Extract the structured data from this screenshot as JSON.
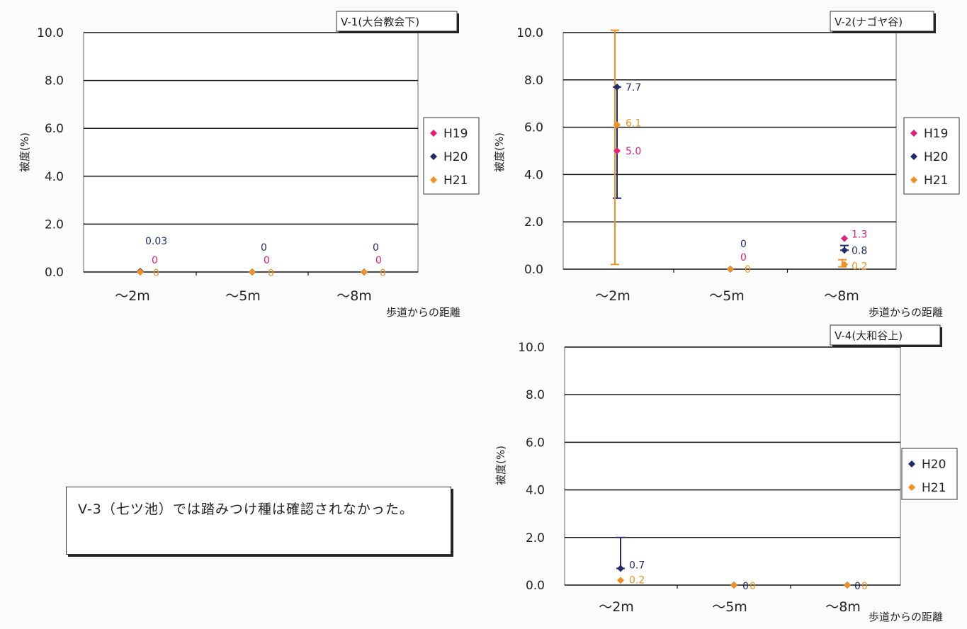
{
  "note": {
    "text": "V-3（七ツ池）では踏みつけ種は確認されなかった。"
  },
  "series_colors": {
    "H19": "#e0207a",
    "H20": "#1f2d6b",
    "H21": "#f0901e"
  },
  "chart_data": [
    {
      "id": "v1",
      "type": "scatter",
      "title": "V-1(大台教会下)",
      "ylabel": "被度(%)",
      "xlabel": "歩道からの距離",
      "categories": [
        "〜2m",
        "〜5m",
        "〜8m"
      ],
      "ylim": [
        0,
        10
      ],
      "yticks": [
        "0.0",
        "2.0",
        "4.0",
        "6.0",
        "8.0",
        "10.0"
      ],
      "legend_position": "right",
      "series": [
        {
          "name": "H19",
          "values": [
            0,
            0,
            0
          ],
          "labels": [
            "0",
            "0",
            "0"
          ]
        },
        {
          "name": "H20",
          "values": [
            0.03,
            0,
            0
          ],
          "labels": [
            "0.03",
            "0",
            "0"
          ]
        },
        {
          "name": "H21",
          "values": [
            0,
            0,
            0
          ],
          "labels": [
            "0",
            "0",
            "0"
          ]
        }
      ]
    },
    {
      "id": "v2",
      "type": "scatter",
      "title": "V-2(ナゴヤ谷)",
      "ylabel": "被度(%)",
      "xlabel": "歩道からの距離",
      "categories": [
        "〜2m",
        "〜5m",
        "〜8m"
      ],
      "ylim": [
        0,
        10
      ],
      "yticks": [
        "0.0",
        "2.0",
        "4.0",
        "6.0",
        "8.0",
        "10.0"
      ],
      "legend_position": "right",
      "series": [
        {
          "name": "H19",
          "values": [
            5.0,
            0,
            1.3
          ],
          "labels": [
            "5.0",
            "0",
            "1.3"
          ]
        },
        {
          "name": "H20",
          "values": [
            7.7,
            0,
            0.8
          ],
          "labels": [
            "7.7",
            "0",
            "0.8"
          ],
          "error_bars": [
            [
              3.0,
              7.7
            ],
            null,
            [
              0.8,
              1.0
            ]
          ]
        },
        {
          "name": "H21",
          "values": [
            6.1,
            0,
            0.2
          ],
          "labels": [
            "6.1",
            "0",
            "0.2"
          ],
          "error_bars": [
            [
              0.2,
              10.1
            ],
            null,
            [
              0.1,
              0.4
            ]
          ]
        }
      ]
    },
    {
      "id": "v4",
      "type": "scatter",
      "title": "V-4(大和谷上)",
      "ylabel": "被度(%)",
      "xlabel": "歩道からの距離",
      "categories": [
        "〜2m",
        "〜5m",
        "〜8m"
      ],
      "ylim": [
        0,
        10
      ],
      "yticks": [
        "0.0",
        "2.0",
        "4.0",
        "6.0",
        "8.0",
        "10.0"
      ],
      "legend_position": "right",
      "series": [
        {
          "name": "H20",
          "values": [
            0.7,
            0,
            0
          ],
          "labels": [
            "0.7",
            "0",
            "0"
          ],
          "error_bars": [
            [
              0.7,
              2.0
            ],
            null,
            null
          ]
        },
        {
          "name": "H21",
          "values": [
            0.2,
            0,
            0
          ],
          "labels": [
            "0.2",
            "0",
            "0"
          ]
        }
      ]
    }
  ]
}
